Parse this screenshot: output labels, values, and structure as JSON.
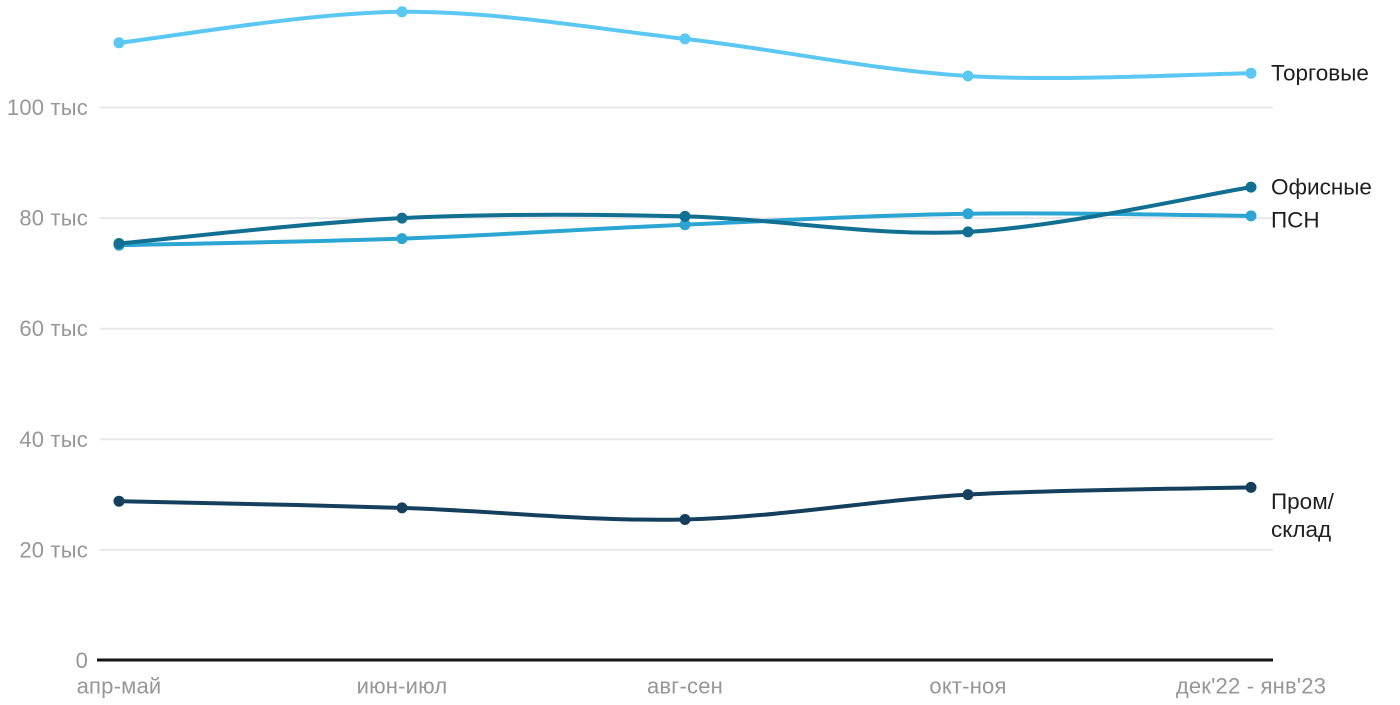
{
  "chart_data": {
    "type": "line",
    "title": "",
    "unit": "тыс",
    "x_categories": [
      "апр-май",
      "июн-июл",
      "авг-сен",
      "окт-ноя",
      "дек'22 - янв'23"
    ],
    "yticks": [
      0,
      20,
      40,
      60,
      80,
      100
    ],
    "ytick_labels": [
      "0",
      "20 тыс",
      "40 тыс",
      "60 тыс",
      "80 тыс",
      "100 тыс"
    ],
    "ylim": [
      0,
      119.5
    ],
    "grid": "horizontal",
    "legend_position": "inline-right",
    "series": [
      {
        "name": "Торговые",
        "label_lines": [
          "Торговые"
        ],
        "color": "#5bc8f3",
        "values": [
          111.7,
          117.3,
          112.4,
          105.7,
          106.2
        ]
      },
      {
        "name": "Офисные",
        "label_lines": [
          "Офисные"
        ],
        "color": "#116f92",
        "values": [
          75.4,
          80.0,
          80.3,
          77.5,
          85.6
        ]
      },
      {
        "name": "ПСН",
        "label_lines": [
          "ПСН"
        ],
        "color": "#2ba6d2",
        "values": [
          75.1,
          76.3,
          78.8,
          80.8,
          80.4
        ]
      },
      {
        "name": "Пром/склад",
        "label_lines": [
          "Пром/",
          "склад"
        ],
        "color": "#14405e",
        "values": [
          28.8,
          27.6,
          25.5,
          30.0,
          31.3
        ]
      }
    ],
    "colors": {
      "grid": "#e8e8e8",
      "axis": "#141414",
      "tick_text": "#979797",
      "label_text": "#1f1f1f",
      "background": "#ffffff"
    }
  }
}
